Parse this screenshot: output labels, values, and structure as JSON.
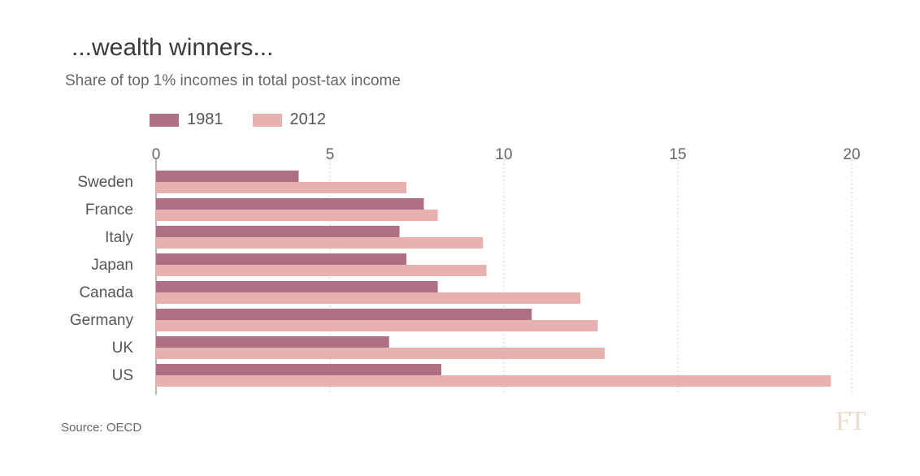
{
  "title": "...wealth winners...",
  "subtitle": "Share of top 1% incomes in total post-tax income",
  "source": "Source: OECD",
  "logo": "FT",
  "colors": {
    "series_1981": "#b07083",
    "series_2012": "#e8b1b1",
    "gridline": "#cccccc",
    "axis": "#888888"
  },
  "chart_data": {
    "type": "bar",
    "orientation": "horizontal",
    "categories": [
      "Sweden",
      "France",
      "Italy",
      "Japan",
      "Canada",
      "Germany",
      "UK",
      "US"
    ],
    "series": [
      {
        "name": "1981",
        "values": [
          4.1,
          7.7,
          7.0,
          7.2,
          8.1,
          10.8,
          6.7,
          8.2
        ]
      },
      {
        "name": "2012",
        "values": [
          7.2,
          8.1,
          9.4,
          9.5,
          12.2,
          12.7,
          12.9,
          19.4
        ]
      }
    ],
    "xlim": [
      0,
      20
    ],
    "xticks": [
      0,
      5,
      10,
      15,
      20
    ],
    "grid": true,
    "legend_position": "top-left"
  }
}
